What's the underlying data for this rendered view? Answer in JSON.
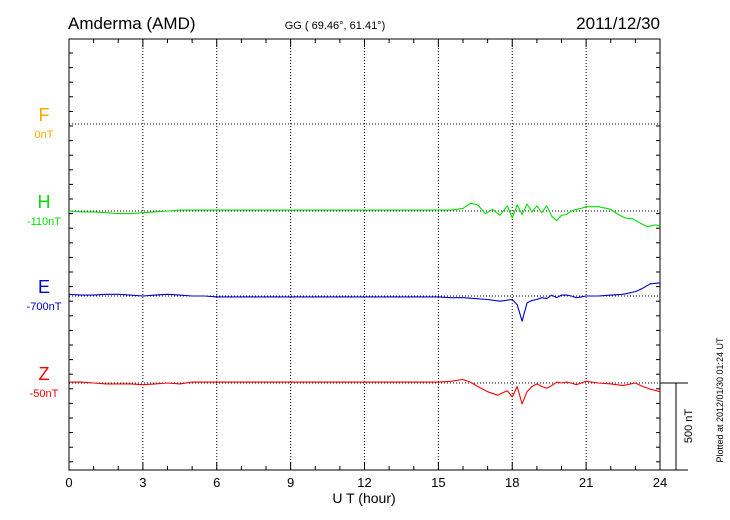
{
  "header": {
    "station": "Amderma (AMD)",
    "coords": "GG ( 69.46°,  61.41°)",
    "date": "2011/12/30"
  },
  "side_note": "Plotted at 2012/01/30 01:24 UT",
  "scale_label": "500 nT",
  "colors": {
    "F": "#ffa500",
    "H": "#00e000",
    "E": "#0000cc",
    "Z": "#ff0000",
    "grid": "#000000"
  },
  "chart_data": {
    "type": "line",
    "xlabel": "U T (hour)",
    "xlim": [
      0,
      24
    ],
    "x_ticks": [
      0,
      3,
      6,
      9,
      12,
      15,
      18,
      21,
      24
    ],
    "x_tick_labels": [
      "0",
      "3",
      "6",
      "9",
      "12",
      "15",
      "18",
      "21",
      "24"
    ],
    "scale_bar_nT": 500,
    "series": [
      {
        "name": "F",
        "baseline": "0nT",
        "color": "#ffa500",
        "x": [],
        "y": []
      },
      {
        "name": "H",
        "baseline": "-110nT",
        "color": "#00e000",
        "x": [
          0,
          0.5,
          1,
          1.5,
          2,
          2.5,
          3,
          3.5,
          4,
          4.5,
          5,
          5.5,
          6,
          7,
          8,
          9,
          10,
          11,
          12,
          13,
          14,
          15,
          15.5,
          16,
          16.3,
          16.6,
          16.9,
          17.2,
          17.5,
          17.8,
          18,
          18.2,
          18.4,
          18.6,
          18.8,
          19,
          19.2,
          19.4,
          19.6,
          19.8,
          20,
          20.2,
          20.4,
          20.6,
          20.8,
          21,
          21.5,
          22,
          22.3,
          22.6,
          22.9,
          23.2,
          23.5,
          23.8,
          24
        ],
        "y": [
          0,
          -5,
          -5,
          -10,
          -15,
          -15,
          -10,
          -5,
          0,
          5,
          5,
          5,
          5,
          5,
          5,
          5,
          5,
          5,
          5,
          5,
          5,
          5,
          5,
          15,
          45,
          35,
          -15,
          10,
          -25,
          30,
          -40,
          35,
          -20,
          40,
          -5,
          30,
          -10,
          30,
          -30,
          -55,
          -25,
          -20,
          0,
          10,
          15,
          25,
          25,
          10,
          -20,
          -40,
          -45,
          -70,
          -90,
          -80,
          -85
        ]
      },
      {
        "name": "E",
        "baseline": "-700nT",
        "color": "#0000cc",
        "x": [
          0,
          0.5,
          1,
          1.5,
          2,
          2.5,
          3,
          3.5,
          4,
          4.5,
          5,
          5.5,
          6,
          7,
          8,
          9,
          10,
          11,
          12,
          13,
          14,
          15,
          15.5,
          16,
          16.5,
          17,
          17.5,
          18,
          18.2,
          18.4,
          18.6,
          18.8,
          19,
          19.2,
          19.4,
          19.6,
          19.8,
          20,
          20.2,
          20.4,
          20.6,
          20.8,
          21,
          21.5,
          22,
          22.5,
          23,
          23.3,
          23.6,
          24
        ],
        "y": [
          10,
          5,
          5,
          10,
          10,
          5,
          0,
          5,
          10,
          5,
          0,
          0,
          -5,
          -5,
          -5,
          -5,
          -5,
          -5,
          -5,
          -5,
          -5,
          -5,
          -10,
          -10,
          -15,
          -20,
          -30,
          -20,
          -50,
          -145,
          -40,
          -25,
          -20,
          -10,
          -15,
          5,
          -10,
          5,
          5,
          0,
          -10,
          -5,
          0,
          0,
          5,
          10,
          25,
          45,
          70,
          75
        ]
      },
      {
        "name": "Z",
        "baseline": "-50nT",
        "color": "#ff0000",
        "x": [
          0,
          0.5,
          1,
          1.5,
          2,
          2.5,
          3,
          3.5,
          4,
          4.5,
          5,
          6,
          7,
          8,
          9,
          10,
          11,
          12,
          13,
          14,
          15,
          15.5,
          16,
          16.3,
          16.6,
          17,
          17.4,
          17.8,
          18,
          18.2,
          18.4,
          18.6,
          18.8,
          19,
          19.2,
          19.4,
          19.6,
          19.8,
          20,
          20.2,
          20.4,
          20.6,
          20.8,
          21,
          21.5,
          22,
          22.5,
          23,
          23.3,
          23.6,
          24
        ],
        "y": [
          5,
          5,
          0,
          -5,
          -5,
          -5,
          -10,
          -5,
          0,
          -5,
          5,
          5,
          5,
          5,
          5,
          5,
          5,
          5,
          5,
          5,
          5,
          10,
          20,
          5,
          -20,
          -50,
          -70,
          -45,
          -80,
          -20,
          -120,
          -50,
          -20,
          -5,
          -20,
          -30,
          -15,
          5,
          0,
          5,
          0,
          -10,
          0,
          10,
          0,
          -5,
          -15,
          0,
          -20,
          -35,
          -50
        ]
      }
    ]
  }
}
